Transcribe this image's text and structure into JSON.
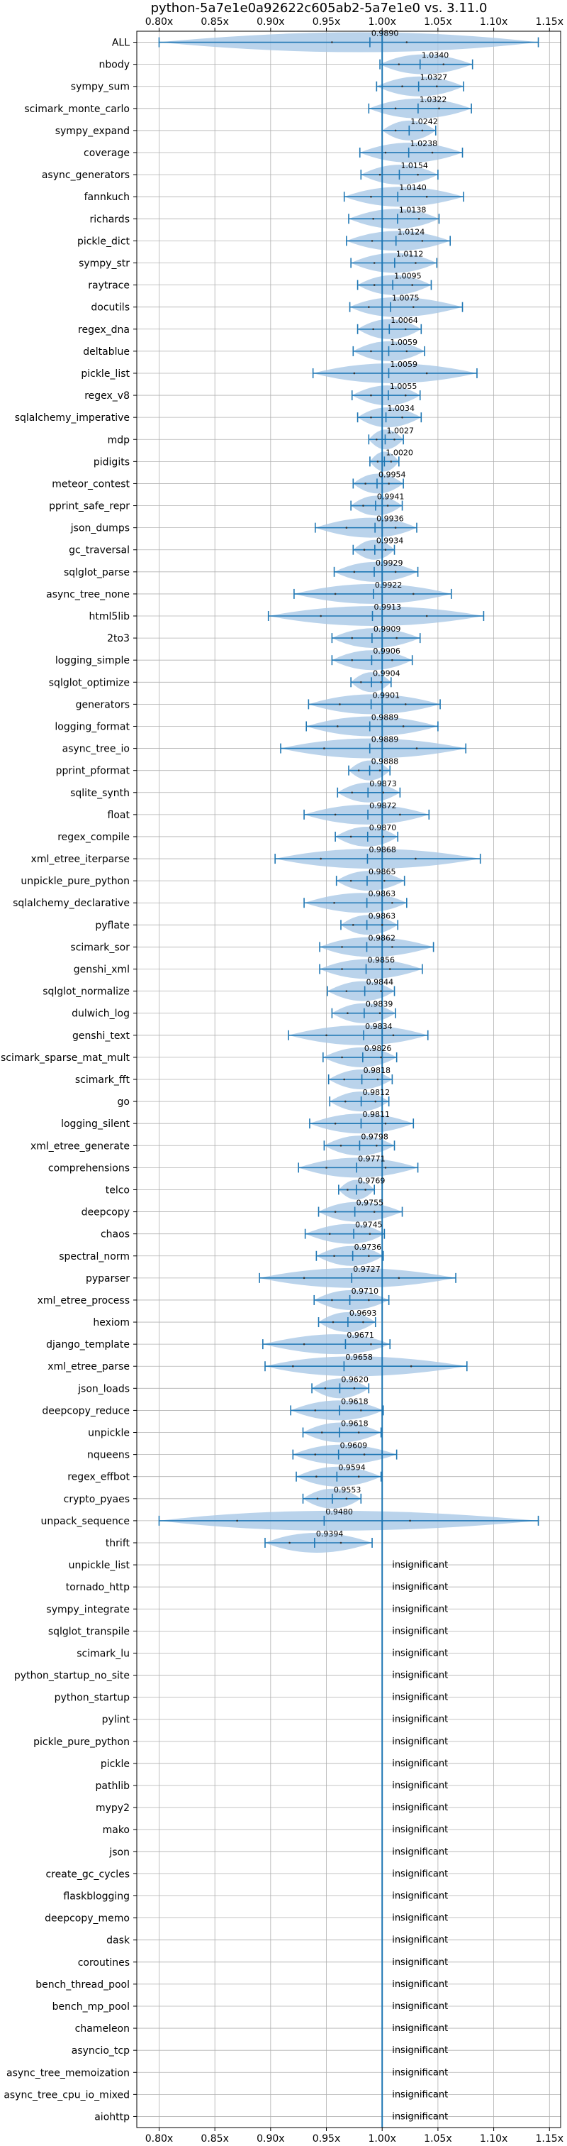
{
  "chart_data": {
    "type": "violin",
    "title": "python-5a7e1e0a92622c605ab2-5a7e1e0 vs. 3.11.0",
    "xlim": [
      0.78,
      1.16
    ],
    "xticks": [
      0.8,
      0.85,
      0.9,
      0.95,
      1.0,
      1.05,
      1.1,
      1.15
    ],
    "xtick_labels": [
      "0.80x",
      "0.85x",
      "0.90x",
      "0.95x",
      "1.00x",
      "1.05x",
      "1.10x",
      "1.15x"
    ],
    "reference_line": 1.0,
    "grid": true,
    "insignificant_label": "insignificant",
    "benchmarks": [
      {
        "name": "ALL",
        "value": 0.989,
        "label": "0.9890",
        "lo": 0.8,
        "hi": 1.14,
        "q1": 0.955,
        "q3": 1.022
      },
      {
        "name": "nbody",
        "value": 1.034,
        "label": "1.0340",
        "lo": 0.998,
        "hi": 1.081,
        "q1": 1.015,
        "q3": 1.055
      },
      {
        "name": "sympy_sum",
        "value": 1.0327,
        "label": "1.0327",
        "lo": 0.995,
        "hi": 1.073,
        "q1": 1.018,
        "q3": 1.049
      },
      {
        "name": "scimark_monte_carlo",
        "value": 1.0322,
        "label": "1.0322",
        "lo": 0.988,
        "hi": 1.08,
        "q1": 1.012,
        "q3": 1.051
      },
      {
        "name": "sympy_expand",
        "value": 1.0242,
        "label": "1.0242",
        "lo": 1.0,
        "hi": 1.048,
        "q1": 1.012,
        "q3": 1.036
      },
      {
        "name": "coverage",
        "value": 1.0238,
        "label": "1.0238",
        "lo": 0.98,
        "hi": 1.072,
        "q1": 1.003,
        "q3": 1.045
      },
      {
        "name": "async_generators",
        "value": 1.0154,
        "label": "1.0154",
        "lo": 0.981,
        "hi": 1.05,
        "q1": 0.998,
        "q3": 1.032
      },
      {
        "name": "fannkuch",
        "value": 1.014,
        "label": "1.0140",
        "lo": 0.966,
        "hi": 1.073,
        "q1": 0.99,
        "q3": 1.04
      },
      {
        "name": "richards",
        "value": 1.0138,
        "label": "1.0138",
        "lo": 0.97,
        "hi": 1.051,
        "q1": 0.992,
        "q3": 1.033
      },
      {
        "name": "pickle_dict",
        "value": 1.0124,
        "label": "1.0124",
        "lo": 0.968,
        "hi": 1.061,
        "q1": 0.991,
        "q3": 1.036
      },
      {
        "name": "sympy_str",
        "value": 1.0112,
        "label": "1.0112",
        "lo": 0.972,
        "hi": 1.049,
        "q1": 0.993,
        "q3": 1.03
      },
      {
        "name": "raytrace",
        "value": 1.0095,
        "label": "1.0095",
        "lo": 0.978,
        "hi": 1.044,
        "q1": 0.993,
        "q3": 1.027
      },
      {
        "name": "docutils",
        "value": 1.0075,
        "label": "1.0075",
        "lo": 0.971,
        "hi": 1.072,
        "q1": 0.988,
        "q3": 1.028
      },
      {
        "name": "regex_dna",
        "value": 1.0064,
        "label": "1.0064",
        "lo": 0.978,
        "hi": 1.035,
        "q1": 0.992,
        "q3": 1.021
      },
      {
        "name": "deltablue",
        "value": 1.0059,
        "label": "1.0059",
        "lo": 0.974,
        "hi": 1.038,
        "q1": 0.99,
        "q3": 1.022
      },
      {
        "name": "pickle_list",
        "value": 1.0059,
        "label": "1.0059",
        "lo": 0.938,
        "hi": 1.085,
        "q1": 0.975,
        "q3": 1.04
      },
      {
        "name": "regex_v8",
        "value": 1.0055,
        "label": "1.0055",
        "lo": 0.973,
        "hi": 1.034,
        "q1": 0.99,
        "q3": 1.021
      },
      {
        "name": "sqlalchemy_imperative",
        "value": 1.0034,
        "label": "1.0034",
        "lo": 0.978,
        "hi": 1.035,
        "q1": 0.99,
        "q3": 1.018
      },
      {
        "name": "mdp",
        "value": 1.0027,
        "label": "1.0027",
        "lo": 0.988,
        "hi": 1.019,
        "q1": 0.995,
        "q3": 1.011
      },
      {
        "name": "pidigits",
        "value": 1.002,
        "label": "1.0020",
        "lo": 0.989,
        "hi": 1.015,
        "q1": 0.996,
        "q3": 1.008
      },
      {
        "name": "meteor_contest",
        "value": 0.9954,
        "label": "0.9954",
        "lo": 0.974,
        "hi": 1.019,
        "q1": 0.985,
        "q3": 1.006
      },
      {
        "name": "pprint_safe_repr",
        "value": 0.9941,
        "label": "0.9941",
        "lo": 0.972,
        "hi": 1.018,
        "q1": 0.983,
        "q3": 1.005
      },
      {
        "name": "json_dumps",
        "value": 0.9936,
        "label": "0.9936",
        "lo": 0.94,
        "hi": 1.031,
        "q1": 0.968,
        "q3": 1.012
      },
      {
        "name": "gc_traversal",
        "value": 0.9934,
        "label": "0.9934",
        "lo": 0.974,
        "hi": 1.011,
        "q1": 0.984,
        "q3": 1.003
      },
      {
        "name": "sqlglot_parse",
        "value": 0.9929,
        "label": "0.9929",
        "lo": 0.957,
        "hi": 1.032,
        "q1": 0.975,
        "q3": 1.012
      },
      {
        "name": "async_tree_none",
        "value": 0.9922,
        "label": "0.9922",
        "lo": 0.921,
        "hi": 1.062,
        "q1": 0.958,
        "q3": 1.028
      },
      {
        "name": "html5lib",
        "value": 0.9913,
        "label": "0.9913",
        "lo": 0.898,
        "hi": 1.091,
        "q1": 0.945,
        "q3": 1.04
      },
      {
        "name": "2to3",
        "value": 0.9909,
        "label": "0.9909",
        "lo": 0.955,
        "hi": 1.034,
        "q1": 0.973,
        "q3": 1.013
      },
      {
        "name": "logging_simple",
        "value": 0.9906,
        "label": "0.9906",
        "lo": 0.955,
        "hi": 1.027,
        "q1": 0.973,
        "q3": 1.009
      },
      {
        "name": "sqlglot_optimize",
        "value": 0.9904,
        "label": "0.9904",
        "lo": 0.972,
        "hi": 1.008,
        "q1": 0.981,
        "q3": 0.999
      },
      {
        "name": "generators",
        "value": 0.9901,
        "label": "0.9901",
        "lo": 0.934,
        "hi": 1.052,
        "q1": 0.962,
        "q3": 1.021
      },
      {
        "name": "logging_format",
        "value": 0.9889,
        "label": "0.9889",
        "lo": 0.932,
        "hi": 1.05,
        "q1": 0.96,
        "q3": 1.019
      },
      {
        "name": "async_tree_io",
        "value": 0.9889,
        "label": "0.9889",
        "lo": 0.909,
        "hi": 1.075,
        "q1": 0.948,
        "q3": 1.031
      },
      {
        "name": "pprint_pformat",
        "value": 0.9888,
        "label": "0.9888",
        "lo": 0.97,
        "hi": 1.007,
        "q1": 0.979,
        "q3": 0.998
      },
      {
        "name": "sqlite_synth",
        "value": 0.9873,
        "label": "0.9873",
        "lo": 0.96,
        "hi": 1.016,
        "q1": 0.973,
        "q3": 1.001
      },
      {
        "name": "float",
        "value": 0.9872,
        "label": "0.9872",
        "lo": 0.93,
        "hi": 1.042,
        "q1": 0.958,
        "q3": 1.016
      },
      {
        "name": "regex_compile",
        "value": 0.987,
        "label": "0.9870",
        "lo": 0.958,
        "hi": 1.014,
        "q1": 0.972,
        "q3": 1.001
      },
      {
        "name": "xml_etree_iterparse",
        "value": 0.9868,
        "label": "0.9868",
        "lo": 0.904,
        "hi": 1.088,
        "q1": 0.945,
        "q3": 1.03
      },
      {
        "name": "unpickle_pure_python",
        "value": 0.9865,
        "label": "0.9865",
        "lo": 0.959,
        "hi": 1.02,
        "q1": 0.972,
        "q3": 1.002
      },
      {
        "name": "sqlalchemy_declarative",
        "value": 0.9863,
        "label": "0.9863",
        "lo": 0.93,
        "hi": 1.022,
        "q1": 0.957,
        "q3": 1.009
      },
      {
        "name": "pyflate",
        "value": 0.9863,
        "label": "0.9863",
        "lo": 0.963,
        "hi": 1.014,
        "q1": 0.974,
        "q3": 1.0
      },
      {
        "name": "scimark_sor",
        "value": 0.9862,
        "label": "0.9862",
        "lo": 0.944,
        "hi": 1.046,
        "q1": 0.964,
        "q3": 1.009
      },
      {
        "name": "genshi_xml",
        "value": 0.9856,
        "label": "0.9856",
        "lo": 0.944,
        "hi": 1.036,
        "q1": 0.964,
        "q3": 1.007
      },
      {
        "name": "sqlglot_normalize",
        "value": 0.9844,
        "label": "0.9844",
        "lo": 0.951,
        "hi": 1.011,
        "q1": 0.968,
        "q3": 0.999
      },
      {
        "name": "dulwich_log",
        "value": 0.9839,
        "label": "0.9839",
        "lo": 0.955,
        "hi": 1.012,
        "q1": 0.969,
        "q3": 0.998
      },
      {
        "name": "genshi_text",
        "value": 0.9834,
        "label": "0.9834",
        "lo": 0.916,
        "hi": 1.041,
        "q1": 0.95,
        "q3": 1.01
      },
      {
        "name": "scimark_sparse_mat_mult",
        "value": 0.9826,
        "label": "0.9826",
        "lo": 0.947,
        "hi": 1.013,
        "q1": 0.964,
        "q3": 0.999
      },
      {
        "name": "scimark_fft",
        "value": 0.9818,
        "label": "0.9818",
        "lo": 0.952,
        "hi": 1.009,
        "q1": 0.966,
        "q3": 0.996
      },
      {
        "name": "go",
        "value": 0.9812,
        "label": "0.9812",
        "lo": 0.953,
        "hi": 1.006,
        "q1": 0.967,
        "q3": 0.994
      },
      {
        "name": "logging_silent",
        "value": 0.9811,
        "label": "0.9811",
        "lo": 0.935,
        "hi": 1.028,
        "q1": 0.958,
        "q3": 1.003
      },
      {
        "name": "xml_etree_generate",
        "value": 0.9798,
        "label": "0.9798",
        "lo": 0.948,
        "hi": 1.011,
        "q1": 0.963,
        "q3": 0.995
      },
      {
        "name": "comprehensions",
        "value": 0.9771,
        "label": "0.9771",
        "lo": 0.925,
        "hi": 1.032,
        "q1": 0.95,
        "q3": 1.003
      },
      {
        "name": "telco",
        "value": 0.9769,
        "label": "0.9769",
        "lo": 0.961,
        "hi": 0.993,
        "q1": 0.969,
        "q3": 0.985
      },
      {
        "name": "deepcopy",
        "value": 0.9755,
        "label": "0.9755",
        "lo": 0.943,
        "hi": 1.018,
        "q1": 0.958,
        "q3": 0.993
      },
      {
        "name": "chaos",
        "value": 0.9745,
        "label": "0.9745",
        "lo": 0.931,
        "hi": 1.002,
        "q1": 0.953,
        "q3": 0.989
      },
      {
        "name": "spectral_norm",
        "value": 0.9736,
        "label": "0.9736",
        "lo": 0.941,
        "hi": 1.001,
        "q1": 0.957,
        "q3": 0.988
      },
      {
        "name": "pyparser",
        "value": 0.9727,
        "label": "0.9727",
        "lo": 0.89,
        "hi": 1.066,
        "q1": 0.93,
        "q3": 1.015
      },
      {
        "name": "xml_etree_process",
        "value": 0.971,
        "label": "0.9710",
        "lo": 0.939,
        "hi": 1.006,
        "q1": 0.955,
        "q3": 0.988
      },
      {
        "name": "hexiom",
        "value": 0.9693,
        "label": "0.9693",
        "lo": 0.943,
        "hi": 0.994,
        "q1": 0.956,
        "q3": 0.983
      },
      {
        "name": "django_template",
        "value": 0.9671,
        "label": "0.9671",
        "lo": 0.893,
        "hi": 1.007,
        "q1": 0.93,
        "q3": 0.99
      },
      {
        "name": "xml_etree_parse",
        "value": 0.9658,
        "label": "0.9658",
        "lo": 0.895,
        "hi": 1.076,
        "q1": 0.92,
        "q3": 1.026
      },
      {
        "name": "json_loads",
        "value": 0.962,
        "label": "0.9620",
        "lo": 0.937,
        "hi": 0.988,
        "q1": 0.949,
        "q3": 0.975
      },
      {
        "name": "deepcopy_reduce",
        "value": 0.9618,
        "label": "0.9618",
        "lo": 0.918,
        "hi": 1.001,
        "q1": 0.94,
        "q3": 0.981
      },
      {
        "name": "unpickle",
        "value": 0.9618,
        "label": "0.9618",
        "lo": 0.929,
        "hi": 0.999,
        "q1": 0.946,
        "q3": 0.979
      },
      {
        "name": "nqueens",
        "value": 0.9609,
        "label": "0.9609",
        "lo": 0.92,
        "hi": 1.013,
        "q1": 0.94,
        "q3": 0.984
      },
      {
        "name": "regex_effbot",
        "value": 0.9594,
        "label": "0.9594",
        "lo": 0.923,
        "hi": 0.999,
        "q1": 0.941,
        "q3": 0.979
      },
      {
        "name": "crypto_pyaes",
        "value": 0.9553,
        "label": "0.9553",
        "lo": 0.929,
        "hi": 0.981,
        "q1": 0.942,
        "q3": 0.968
      },
      {
        "name": "unpack_sequence",
        "value": 0.948,
        "label": "0.9480",
        "lo": 0.8,
        "hi": 1.14,
        "q1": 0.87,
        "q3": 1.025
      },
      {
        "name": "thrift",
        "value": 0.9394,
        "label": "0.9394",
        "lo": 0.895,
        "hi": 0.991,
        "q1": 0.917,
        "q3": 0.963
      },
      {
        "name": "unpickle_list",
        "insignificant": true
      },
      {
        "name": "tornado_http",
        "insignificant": true
      },
      {
        "name": "sympy_integrate",
        "insignificant": true
      },
      {
        "name": "sqlglot_transpile",
        "insignificant": true
      },
      {
        "name": "scimark_lu",
        "insignificant": true
      },
      {
        "name": "python_startup_no_site",
        "insignificant": true
      },
      {
        "name": "python_startup",
        "insignificant": true
      },
      {
        "name": "pylint",
        "insignificant": true
      },
      {
        "name": "pickle_pure_python",
        "insignificant": true
      },
      {
        "name": "pickle",
        "insignificant": true
      },
      {
        "name": "pathlib",
        "insignificant": true
      },
      {
        "name": "mypy2",
        "insignificant": true
      },
      {
        "name": "mako",
        "insignificant": true
      },
      {
        "name": "json",
        "insignificant": true
      },
      {
        "name": "create_gc_cycles",
        "insignificant": true
      },
      {
        "name": "flaskblogging",
        "insignificant": true
      },
      {
        "name": "deepcopy_memo",
        "insignificant": true
      },
      {
        "name": "dask",
        "insignificant": true
      },
      {
        "name": "coroutines",
        "insignificant": true
      },
      {
        "name": "bench_thread_pool",
        "insignificant": true
      },
      {
        "name": "bench_mp_pool",
        "insignificant": true
      },
      {
        "name": "chameleon",
        "insignificant": true
      },
      {
        "name": "asyncio_tcp",
        "insignificant": true
      },
      {
        "name": "async_tree_memoization",
        "insignificant": true
      },
      {
        "name": "async_tree_cpu_io_mixed",
        "insignificant": true
      },
      {
        "name": "aiohttp",
        "insignificant": true
      }
    ],
    "colors": {
      "violin": "#a9c8e6",
      "line": "#1f77b4",
      "grid": "#b0b0b0",
      "axis": "#000000",
      "text": "#000000"
    }
  }
}
